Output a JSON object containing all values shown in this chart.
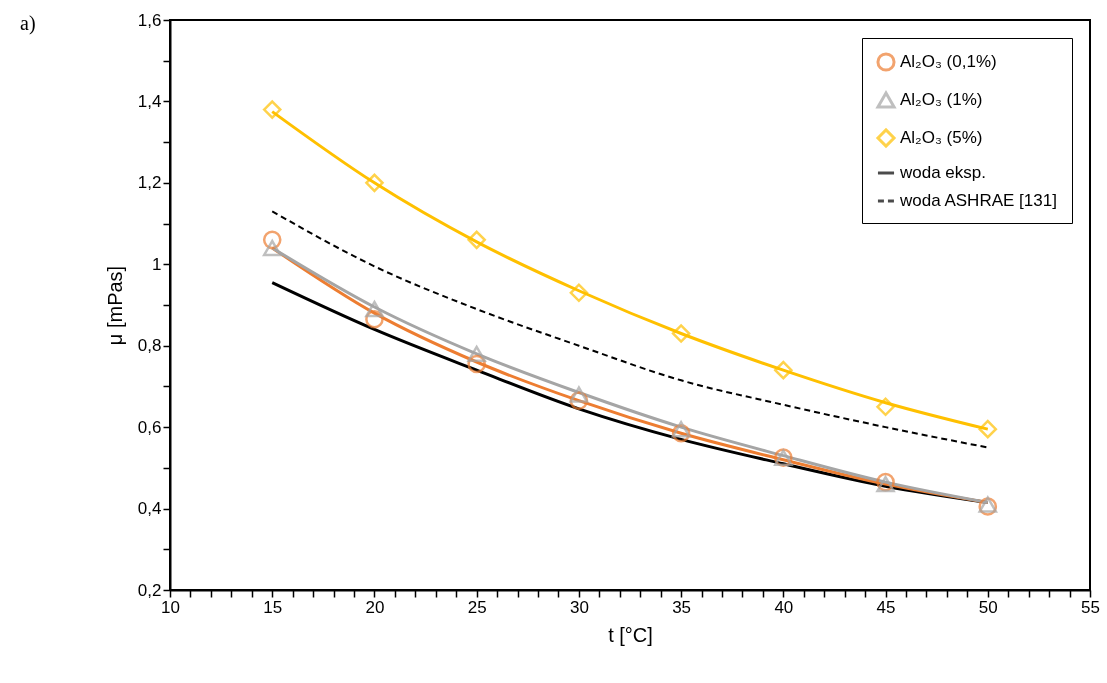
{
  "chart_data": {
    "type": "scatter",
    "xlabel": "t [°C]",
    "ylabel": "μ [mPas]",
    "annotations": [
      "a)"
    ],
    "x": [
      15,
      20,
      25,
      30,
      35,
      40,
      45,
      50
    ],
    "xlim": [
      10,
      55
    ],
    "xticks": [
      10,
      {
        "value": 11,
        "label": null
      },
      {
        "value": 12,
        "label": null
      },
      {
        "value": 13,
        "label": null
      },
      {
        "value": 14,
        "label": null
      },
      15,
      {
        "value": 16,
        "label": null
      },
      {
        "value": 17,
        "label": null
      },
      {
        "value": 18,
        "label": null
      },
      {
        "value": 19,
        "label": null
      },
      20,
      {
        "value": 21,
        "label": null
      },
      {
        "value": 22,
        "label": null
      },
      {
        "value": 23,
        "label": null
      },
      {
        "value": 24,
        "label": null
      },
      25,
      {
        "value": 26,
        "label": null
      },
      {
        "value": 27,
        "label": null
      },
      {
        "value": 28,
        "label": null
      },
      {
        "value": 29,
        "label": null
      },
      30,
      {
        "value": 31,
        "label": null
      },
      {
        "value": 32,
        "label": null
      },
      {
        "value": 33,
        "label": null
      },
      {
        "value": 34,
        "label": null
      },
      35,
      {
        "value": 36,
        "label": null
      },
      {
        "value": 37,
        "label": null
      },
      {
        "value": 38,
        "label": null
      },
      {
        "value": 39,
        "label": null
      },
      40,
      {
        "value": 41,
        "label": null
      },
      {
        "value": 42,
        "label": null
      },
      {
        "value": 43,
        "label": null
      },
      {
        "value": 44,
        "label": null
      },
      45,
      {
        "value": 46,
        "label": null
      },
      {
        "value": 47,
        "label": null
      },
      {
        "value": 48,
        "label": null
      },
      {
        "value": 49,
        "label": null
      },
      50,
      {
        "value": 51,
        "label": null
      },
      {
        "value": 52,
        "label": null
      },
      {
        "value": 53,
        "label": null
      },
      {
        "value": 54,
        "label": null
      },
      55
    ],
    "ylim": [
      0.2,
      1.6
    ],
    "yticks": [
      {
        "value": 0.2,
        "label": "0,2"
      },
      {
        "value": 0.3,
        "label": null
      },
      {
        "value": 0.4,
        "label": "0,4"
      },
      {
        "value": 0.5,
        "label": null
      },
      {
        "value": 0.6,
        "label": "0,6"
      },
      {
        "value": 0.7,
        "label": null
      },
      {
        "value": 0.8,
        "label": "0,8"
      },
      {
        "value": 0.9,
        "label": null
      },
      1,
      {
        "value": 1.1,
        "label": null
      },
      {
        "value": 1.2,
        "label": "1,2"
      },
      {
        "value": 1.3,
        "label": null
      },
      {
        "value": 1.4,
        "label": "1,4"
      },
      {
        "value": 1.5,
        "label": null
      },
      {
        "value": 1.6,
        "label": "1,6"
      }
    ],
    "grid": false,
    "legend": "top right",
    "series": [
      {
        "name": "Al₂O₃ (0,1%)",
        "marker": "circle",
        "color": "#ed7d31",
        "values": [
          1.06,
          0.865,
          0.755,
          0.665,
          0.585,
          0.525,
          0.465,
          0.405
        ]
      },
      {
        "name": "Al₂O₃ (1%)",
        "marker": "triangle",
        "color": "#a5a5a5",
        "values": [
          1.04,
          0.89,
          0.78,
          0.68,
          0.595,
          0.525,
          0.46,
          0.41
        ]
      },
      {
        "name": "Al₂O₃ (5%)",
        "marker": "diamond",
        "color": "#ffc000",
        "values": [
          1.38,
          1.2,
          1.06,
          0.93,
          0.83,
          0.74,
          0.65,
          0.595
        ]
      },
      {
        "name": "woda eksp.",
        "type": "line",
        "line_style": "solid",
        "color": "#000000",
        "values": [
          0.955,
          0.84,
          0.74,
          0.645,
          0.57,
          0.51,
          0.455,
          0.415
        ]
      },
      {
        "name": "woda ASHRAE [131]",
        "type": "line",
        "line_style": "dashed",
        "color": "#000000",
        "values": [
          1.13,
          0.995,
          0.89,
          0.8,
          0.715,
          0.655,
          0.6,
          0.55
        ]
      },
      {
        "type": "line",
        "line_style": "solid",
        "color": "#ed7d31",
        "values": [
          1.04,
          0.88,
          0.76,
          0.665,
          0.585,
          0.52,
          0.46,
          0.415
        ]
      },
      {
        "type": "line",
        "line_style": "solid",
        "color": "#a5a5a5",
        "values": [
          1.04,
          0.895,
          0.78,
          0.685,
          0.6,
          0.53,
          0.465,
          0.415
        ]
      },
      {
        "type": "line",
        "line_style": "solid",
        "color": "#ffc000",
        "values": [
          1.375,
          1.2,
          1.055,
          0.935,
          0.83,
          0.74,
          0.66,
          0.595
        ]
      }
    ]
  }
}
